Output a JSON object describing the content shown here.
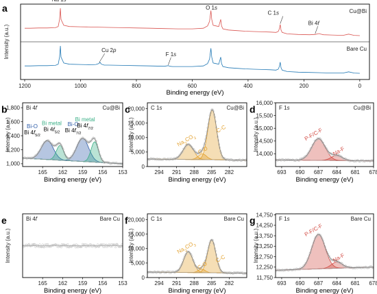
{
  "colors": {
    "cu_bi": "#d9534f",
    "bare_cu": "#1f77b4",
    "bi_o": "#2f5da8",
    "bi_metal": "#3aaf86",
    "c1s": "#e3a02c",
    "f1s": "#d24a42",
    "scatter": "#bdbdbd",
    "sample_cubi_label": "#e05050",
    "sample_bare_label": "#1b78c2"
  },
  "chart_data": [
    {
      "type": "line",
      "panel": "a",
      "xlabel": "Binding energy (eV)",
      "ylabel": "Intensity (a.u.)",
      "xlim": [
        1200,
        -20
      ],
      "xticks": [
        1200,
        1000,
        800,
        600,
        400,
        200,
        0
      ],
      "series": [
        {
          "name": "Cu@Bi",
          "x": [
            1200,
            1180,
            1150,
            1120,
            1090,
            1080,
            1075,
            1072,
            1070,
            1060,
            1040,
            1000,
            950,
            900,
            850,
            800,
            750,
            700,
            650,
            600,
            560,
            545,
            538,
            533,
            530,
            525,
            515,
            505,
            498,
            495,
            490,
            470,
            440,
            410,
            380,
            350,
            320,
            300,
            292,
            288,
            285,
            282,
            278,
            260,
            220,
            180,
            160,
            150,
            145,
            140,
            130,
            100,
            60,
            40,
            20,
            0
          ],
          "y": [
            0.32,
            0.32,
            0.33,
            0.33,
            0.34,
            0.38,
            0.62,
            1.0,
            0.62,
            0.42,
            0.38,
            0.37,
            0.36,
            0.35,
            0.34,
            0.33,
            0.32,
            0.31,
            0.3,
            0.3,
            0.32,
            0.4,
            0.55,
            0.92,
            0.62,
            0.42,
            0.4,
            0.38,
            0.62,
            0.4,
            0.3,
            0.26,
            0.24,
            0.22,
            0.21,
            0.2,
            0.19,
            0.18,
            0.21,
            0.3,
            0.45,
            0.26,
            0.18,
            0.13,
            0.11,
            0.1,
            0.11,
            0.13,
            0.14,
            0.12,
            0.1,
            0.09,
            0.08,
            0.12,
            0.08,
            0.07
          ]
        },
        {
          "name": "Bare Cu",
          "x": [
            1200,
            1180,
            1150,
            1120,
            1090,
            1080,
            1075,
            1072,
            1070,
            1060,
            1040,
            1000,
            960,
            945,
            935,
            930,
            925,
            915,
            900,
            850,
            800,
            750,
            700,
            686,
            680,
            670,
            650,
            600,
            560,
            545,
            538,
            533,
            530,
            525,
            515,
            505,
            498,
            495,
            490,
            470,
            440,
            410,
            380,
            350,
            320,
            300,
            292,
            288,
            285,
            282,
            278,
            260,
            220,
            180,
            140,
            100,
            60,
            40,
            20,
            0
          ],
          "y": [
            0.32,
            0.32,
            0.33,
            0.33,
            0.34,
            0.38,
            0.62,
            1.0,
            0.62,
            0.42,
            0.38,
            0.37,
            0.36,
            0.37,
            0.4,
            0.44,
            0.38,
            0.35,
            0.35,
            0.34,
            0.33,
            0.32,
            0.31,
            0.33,
            0.31,
            0.3,
            0.3,
            0.3,
            0.32,
            0.4,
            0.55,
            0.92,
            0.62,
            0.42,
            0.4,
            0.38,
            0.62,
            0.4,
            0.3,
            0.26,
            0.24,
            0.22,
            0.21,
            0.2,
            0.19,
            0.18,
            0.21,
            0.3,
            0.45,
            0.26,
            0.18,
            0.13,
            0.11,
            0.1,
            0.09,
            0.08,
            0.08,
            0.12,
            0.08,
            0.07
          ]
        }
      ],
      "annotations": [
        {
          "text": "Na 1s",
          "target": "Cu@Bi",
          "x": 1072
        },
        {
          "text": "O 1s",
          "target": "Cu@Bi",
          "x": 531
        },
        {
          "text": "C 1s",
          "target": "Cu@Bi",
          "x": 285
        },
        {
          "text": "Bi 4f",
          "target": "Cu@Bi",
          "x": 160
        },
        {
          "text": "Cu 2p",
          "target": "Bare Cu",
          "x": 933
        },
        {
          "text": "F 1s",
          "target": "Bare Cu",
          "x": 686
        }
      ],
      "grid": false
    },
    {
      "type": "scatter",
      "panel": "b",
      "title": "Bi 4f",
      "sample": "Cu@Bi",
      "xlabel": "Binding energy (eV)",
      "ylabel": "Intensity (a.u.)",
      "xlim": [
        168,
        153
      ],
      "ylim": [
        960,
        1870
      ],
      "xticks": [
        165,
        162,
        159,
        156,
        153
      ],
      "yticks": [
        1000,
        1200,
        1400,
        1600,
        1800
      ],
      "background": {
        "x": [
          168,
          153
        ],
        "y": [
          1080,
          1000
        ]
      },
      "peaks": [
        {
          "name": "Bi-O Bi 4f5/2",
          "center": 164.3,
          "height": 270,
          "width": 0.9,
          "component": "bi_o"
        },
        {
          "name": "Bi metal Bi 4f5/2",
          "center": 162.4,
          "height": 210,
          "width": 0.55,
          "component": "bi_metal"
        },
        {
          "name": "Bi-O Bi 4f7/2",
          "center": 159.0,
          "height": 330,
          "width": 0.9,
          "component": "bi_o"
        },
        {
          "name": "Bi metal Bi 4f7/2",
          "center": 157.2,
          "height": 290,
          "width": 0.55,
          "component": "bi_metal"
        }
      ],
      "labels": [
        {
          "lines": [
            "Bi-O",
            "Bi 4f5/2"
          ],
          "color": "bi_o"
        },
        {
          "lines": [
            "Bi metal",
            "Bi 4f5/2"
          ],
          "color": "bi_metal"
        },
        {
          "lines": [
            "Bi-O",
            "Bi 4f7/2"
          ],
          "color": "bi_o"
        },
        {
          "lines": [
            "Bi metal",
            "Bi 4f7/2"
          ],
          "color": "bi_metal"
        }
      ]
    },
    {
      "type": "scatter",
      "panel": "c",
      "title": "C 1s",
      "sample": "Cu@Bi",
      "xlabel": "Binding energy (eV)",
      "ylabel": "Intensity (a.u.)",
      "xlim": [
        296,
        279
      ],
      "ylim": [
        0,
        22000
      ],
      "xticks": [
        294,
        291,
        288,
        285,
        282
      ],
      "yticks": [
        0,
        5000,
        10000,
        15000,
        20000
      ],
      "background": {
        "x": [
          296,
          279
        ],
        "y": [
          2600,
          2200
        ]
      },
      "peaks": [
        {
          "name": "Na2CO3",
          "center": 289.0,
          "height": 5200,
          "width": 0.9,
          "component": "c1s"
        },
        {
          "name": "C-O",
          "center": 286.6,
          "height": 2000,
          "width": 0.7,
          "component": "c1s"
        },
        {
          "name": "C-C",
          "center": 284.9,
          "height": 17200,
          "width": 0.75,
          "component": "c1s"
        }
      ],
      "labels": [
        "Na2CO3",
        "C-O",
        "C-C"
      ]
    },
    {
      "type": "scatter",
      "panel": "d",
      "title": "F 1s",
      "sample": "Cu@Bi",
      "xlabel": "Binding energy (eV)",
      "ylabel": "Intensity (a.u.)",
      "xlim": [
        694,
        678
      ],
      "ylim": [
        13500,
        16000
      ],
      "xticks": [
        693,
        690,
        687,
        684,
        681,
        678
      ],
      "yticks": [
        14000,
        14500,
        15000,
        15500,
        16000
      ],
      "background": {
        "x": [
          694,
          678
        ],
        "y": [
          13760,
          13720
        ]
      },
      "peaks": [
        {
          "name": "P-F/C-F",
          "center": 687.0,
          "height": 850,
          "width": 1.1,
          "component": "f1s"
        },
        {
          "name": "Na-F",
          "center": 684.0,
          "height": 200,
          "width": 0.9,
          "component": "f1s"
        }
      ],
      "labels": [
        "P-F/C-F",
        "Na-F"
      ]
    },
    {
      "type": "scatter",
      "panel": "e",
      "title": "Bi 4f",
      "sample": "Bare Cu",
      "xlabel": "Binding energy (eV)",
      "ylabel": "Intensity (a.u.)",
      "xlim": [
        168,
        153
      ],
      "ylim": [
        0,
        1
      ],
      "xticks": [
        165,
        162,
        159,
        156,
        153
      ],
      "yticks": [],
      "background": {
        "x": [
          168,
          153
        ],
        "y": [
          0.5,
          0.5
        ]
      },
      "peaks": [],
      "labels": []
    },
    {
      "type": "scatter",
      "panel": "f",
      "title": "C 1s",
      "sample": "Bare Cu",
      "xlabel": "Binding energy (eV)",
      "ylabel": "Intensity (a.u.)",
      "xlim": [
        296,
        279
      ],
      "ylim": [
        0,
        22000
      ],
      "xticks": [
        294,
        291,
        288,
        285,
        282
      ],
      "yticks": [
        0,
        5000,
        10000,
        15000,
        20000
      ],
      "background": {
        "x": [
          296,
          279
        ],
        "y": [
          1900,
          1500
        ]
      },
      "peaks": [
        {
          "name": "Na2CO3",
          "center": 289.0,
          "height": 7200,
          "width": 0.8,
          "component": "c1s"
        },
        {
          "name": "C-O",
          "center": 286.7,
          "height": 1200,
          "width": 0.6,
          "component": "c1s"
        },
        {
          "name": "C-C",
          "center": 285.0,
          "height": 11400,
          "width": 0.7,
          "component": "c1s"
        }
      ],
      "labels": [
        "Na2CO3",
        "C-O",
        "C-C"
      ]
    },
    {
      "type": "scatter",
      "panel": "g",
      "title": "F 1s",
      "sample": "Bare Cu",
      "xlabel": "Binding energy (eV)",
      "ylabel": "Intensity (a.u.)",
      "xlim": [
        694,
        678
      ],
      "ylim": [
        11750,
        14800
      ],
      "xticks": [
        693,
        690,
        687,
        684,
        681,
        678
      ],
      "yticks": [
        11750,
        12250,
        12750,
        13250,
        13750,
        14250,
        14750
      ],
      "background": {
        "x": [
          694,
          678
        ],
        "y": [
          12100,
          12250
        ]
      },
      "peaks": [
        {
          "name": "P-F/C-F",
          "center": 687.0,
          "height": 1650,
          "width": 1.1,
          "component": "f1s"
        },
        {
          "name": "Na-F",
          "center": 684.0,
          "height": 300,
          "width": 0.9,
          "component": "f1s"
        }
      ],
      "labels": [
        "P-F/C-F",
        "Na-F"
      ]
    }
  ]
}
